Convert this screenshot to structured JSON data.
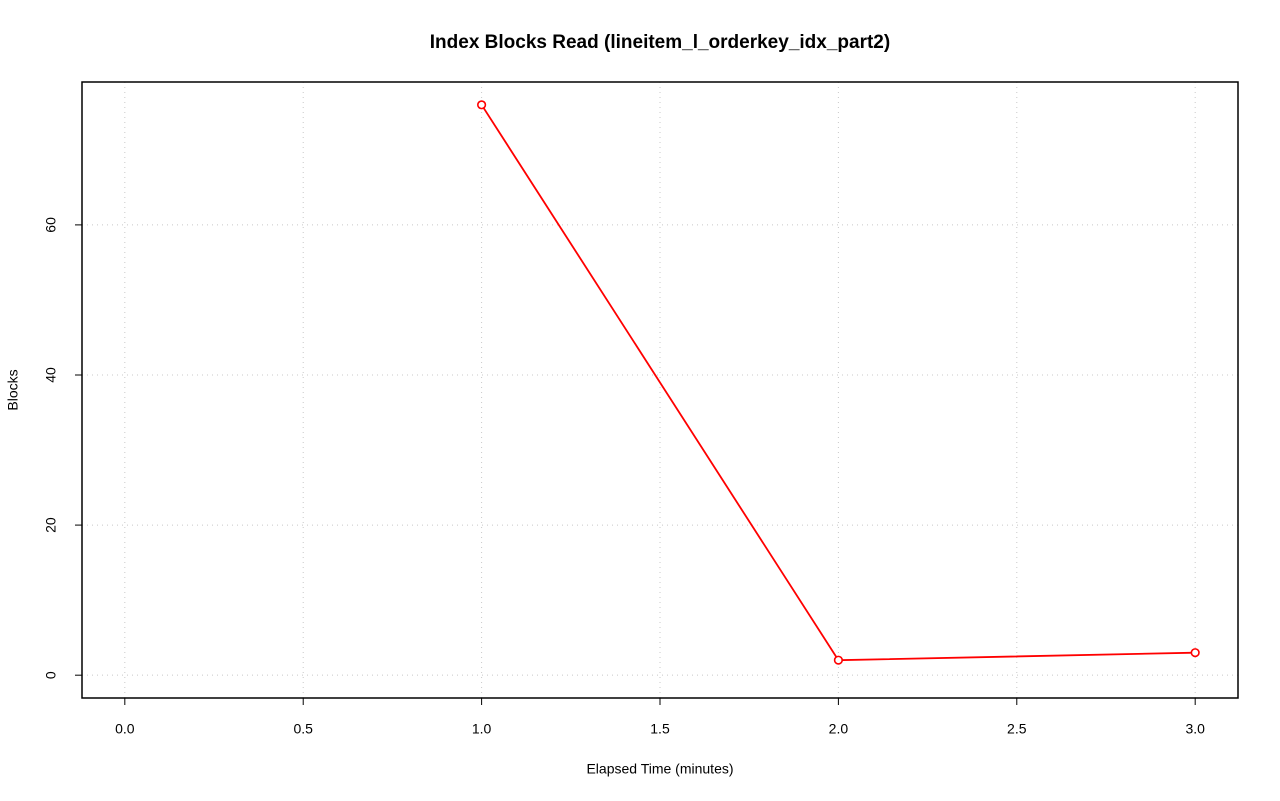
{
  "chart_data": {
    "type": "line",
    "title": "Index Blocks Read (lineitem_l_orderkey_idx_part2)",
    "x_label": "Elapsed Time (minutes)",
    "y_label": "Blocks",
    "x": [
      1,
      2,
      3
    ],
    "series": [
      {
        "name": "Blocks",
        "color": "#ff0000",
        "values": [
          76,
          2,
          3
        ]
      }
    ],
    "xlim": [
      -0.12,
      3.12
    ],
    "xticks": [
      {
        "value": 0,
        "label": "0.0"
      },
      0.5,
      {
        "value": 1,
        "label": "1.0"
      },
      1.5,
      {
        "value": 2,
        "label": "2.0"
      },
      2.5,
      {
        "value": 3,
        "label": "3.0"
      }
    ],
    "ylim": [
      -3.04,
      79.04
    ],
    "yticks": [
      0,
      20,
      40,
      60
    ],
    "grid": true
  }
}
